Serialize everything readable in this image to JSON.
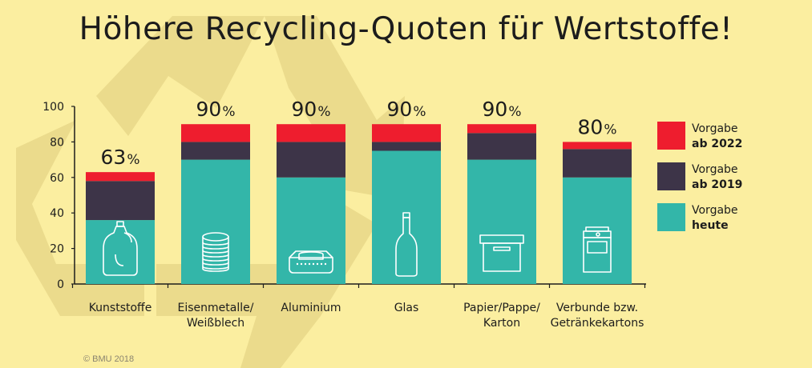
{
  "title": "Höhere Recycling-Quoten für Wertstoffe!",
  "copyright": "© BMU 2018",
  "colors": {
    "background": "#fbeea0",
    "symbol": "#ebdb8c",
    "vorgabe_2022": "#ee1d2e",
    "vorgabe_2019": "#3d3448",
    "vorgabe_heute": "#33b6a9",
    "icon": "#ffffff"
  },
  "legend": [
    {
      "line1": "Vorgabe",
      "line2": "ab 2022",
      "color": "#ee1d2e"
    },
    {
      "line1": "Vorgabe",
      "line2": "ab 2019",
      "color": "#3d3448"
    },
    {
      "line1": "Vorgabe",
      "line2": "heute",
      "color": "#33b6a9"
    }
  ],
  "chart_data": {
    "type": "bar",
    "stacked": true,
    "categories": [
      [
        "Kunststoffe"
      ],
      [
        "Eisenmetalle/",
        "Weißblech"
      ],
      [
        "Aluminium"
      ],
      [
        "Glas"
      ],
      [
        "Papier/Pappe/",
        "Karton"
      ],
      [
        "Verbunde bzw.",
        "Getränkekartons"
      ]
    ],
    "icons": [
      "bottle-icon",
      "can-icon",
      "aluminium-tray-icon",
      "glass-bottle-icon",
      "cardboard-box-icon",
      "beverage-carton-icon"
    ],
    "series": [
      {
        "name": "Vorgabe heute",
        "values": [
          36,
          70,
          60,
          75,
          70,
          60
        ]
      },
      {
        "name": "Vorgabe ab 2019",
        "values": [
          22,
          10,
          20,
          5,
          15,
          16
        ]
      },
      {
        "name": "Vorgabe ab 2022",
        "values": [
          5,
          10,
          10,
          10,
          5,
          4
        ]
      }
    ],
    "top_labels": [
      "63",
      "90",
      "90",
      "90",
      "90",
      "80"
    ],
    "top_label_unit": "%",
    "yticks": [
      "0",
      "20",
      "40",
      "60",
      "80",
      "100"
    ],
    "ylim": [
      0,
      100
    ],
    "legend_position": "right",
    "grid": false
  }
}
